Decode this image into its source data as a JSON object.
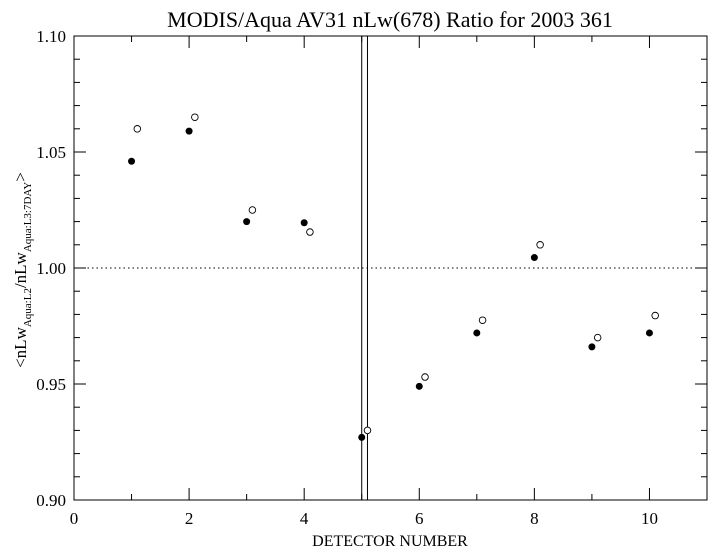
{
  "chart_data": {
    "type": "scatter",
    "title": "MODIS/Aqua AV31 nLw(678) Ratio for 2003 361",
    "xlabel": "DETECTOR NUMBER",
    "ylabel": {
      "open": "<nLw",
      "sub1": "Aqua:L2",
      "mid": "/nLw",
      "sub2": "Aqua:L3:7DAY",
      "close": ">"
    },
    "xlim": [
      0,
      11
    ],
    "ylim": [
      0.9,
      1.1
    ],
    "x_ticks": [
      0,
      2,
      4,
      6,
      8,
      10
    ],
    "x_tick_labels": [
      "0",
      "2",
      "4",
      "6",
      "8",
      "10"
    ],
    "y_ticks": [
      0.9,
      0.95,
      1.0,
      1.05,
      1.1
    ],
    "y_tick_labels": [
      "0.90",
      "0.95",
      "1.00",
      "1.05",
      "1.10"
    ],
    "reference_line": {
      "y": 1.0,
      "style": "dotted"
    },
    "vertical_lines": [
      5.0,
      5.1
    ],
    "series": [
      {
        "marker": "filled-circle",
        "x": [
          1,
          2,
          3,
          4,
          5,
          6,
          7,
          8,
          9,
          10
        ],
        "y": [
          1.046,
          1.059,
          1.02,
          1.0195,
          0.927,
          0.949,
          0.972,
          1.0045,
          0.966,
          0.972
        ]
      },
      {
        "marker": "open-circle",
        "x": [
          1.1,
          2.1,
          3.1,
          4.1,
          5.1,
          6.1,
          7.1,
          8.1,
          9.1,
          10.1
        ],
        "y": [
          1.06,
          1.065,
          1.025,
          1.0155,
          0.93,
          0.953,
          0.9775,
          1.01,
          0.97,
          0.9795
        ]
      }
    ],
    "grid": false,
    "legend": "none"
  }
}
